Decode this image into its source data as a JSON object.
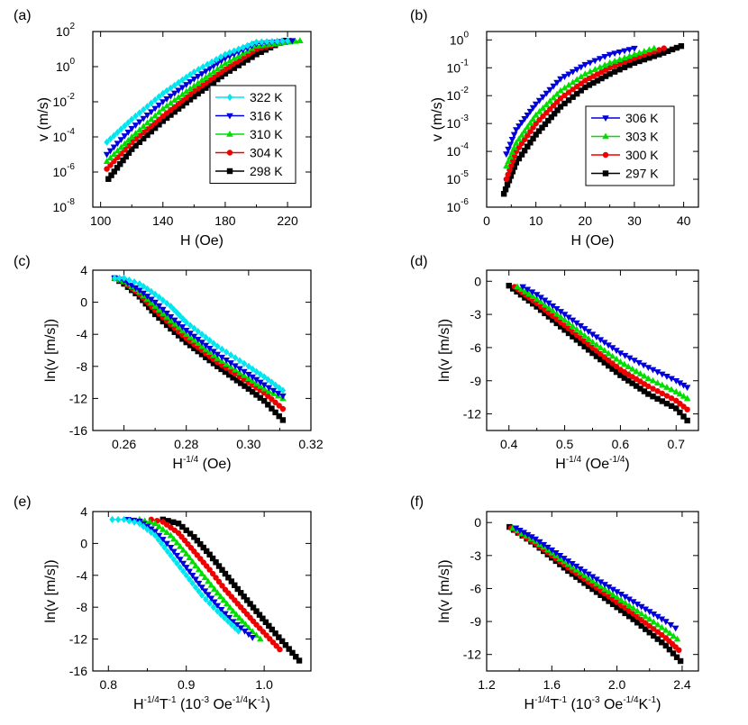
{
  "chart_data": [
    {
      "panel": "(a)",
      "type": "line",
      "xlabel": "H (Oe)",
      "ylabel": "v (m/s)",
      "xlim": [
        95,
        235
      ],
      "ylim": [
        1e-08,
        100
      ],
      "yscale": "log",
      "xticks": [
        100,
        140,
        180,
        220
      ],
      "yticks": [
        1e-08,
        1e-06,
        0.0001,
        0.01,
        1,
        100
      ],
      "ytick_labels": [
        {
          "base": "10",
          "exp": "-8"
        },
        {
          "base": "10",
          "exp": "-6"
        },
        {
          "base": "10",
          "exp": "-4"
        },
        {
          "base": "10",
          "exp": "-2"
        },
        {
          "base": "10",
          "exp": "0"
        },
        {
          "base": "10",
          "exp": "2"
        }
      ],
      "legend_position": "right",
      "series": [
        {
          "name": "322 K",
          "color": "#00e5ee",
          "marker": "diamond",
          "x": [
            104,
            120,
            140,
            160,
            180,
            200,
            220
          ],
          "y": [
            5e-05,
            0.001,
            0.03,
            0.5,
            5,
            25,
            30
          ]
        },
        {
          "name": "316 K",
          "color": "#0000dd",
          "marker": "triangle-down",
          "x": [
            104,
            120,
            140,
            160,
            180,
            200,
            223
          ],
          "y": [
            1e-05,
            0.0003,
            0.01,
            0.2,
            3,
            20,
            30
          ]
        },
        {
          "name": "310 K",
          "color": "#00dd00",
          "marker": "triangle-up",
          "x": [
            104,
            120,
            140,
            160,
            180,
            200,
            228
          ],
          "y": [
            4e-06,
            0.0001,
            0.004,
            0.08,
            1.5,
            15,
            30
          ]
        },
        {
          "name": "304 K",
          "color": "#ee0000",
          "marker": "circle",
          "x": [
            104,
            120,
            140,
            160,
            180,
            200,
            222
          ],
          "y": [
            1.5e-06,
            5e-05,
            0.0015,
            0.04,
            0.7,
            10,
            30
          ]
        },
        {
          "name": "298 K",
          "color": "#000000",
          "marker": "square",
          "x": [
            105,
            120,
            140,
            160,
            180,
            200,
            218
          ],
          "y": [
            4e-07,
            2e-05,
            0.0008,
            0.02,
            0.4,
            5,
            30
          ]
        }
      ]
    },
    {
      "panel": "(b)",
      "type": "line",
      "xlabel": "H (Oe)",
      "ylabel": "v (m/s)",
      "xlim": [
        0,
        43
      ],
      "ylim": [
        1e-06,
        2
      ],
      "yscale": "log",
      "xticks": [
        0,
        10,
        20,
        30,
        40
      ],
      "yticks": [
        1e-06,
        1e-05,
        0.0001,
        0.001,
        0.01,
        0.1,
        1
      ],
      "ytick_labels": [
        {
          "base": "10",
          "exp": "-6"
        },
        {
          "base": "10",
          "exp": "-5"
        },
        {
          "base": "10",
          "exp": "-4"
        },
        {
          "base": "10",
          "exp": "-3"
        },
        {
          "base": "10",
          "exp": "-2"
        },
        {
          "base": "10",
          "exp": "-1"
        },
        {
          "base": "10",
          "exp": "0"
        }
      ],
      "legend_position": "right",
      "series": [
        {
          "name": "306 K",
          "color": "#0000dd",
          "marker": "triangle-down",
          "x": [
            4,
            6,
            10,
            15,
            20,
            25,
            30
          ],
          "y": [
            8e-05,
            0.0006,
            0.005,
            0.04,
            0.13,
            0.3,
            0.5
          ]
        },
        {
          "name": "303 K",
          "color": "#00dd00",
          "marker": "triangle-up",
          "x": [
            4,
            6,
            10,
            15,
            20,
            25,
            30,
            34
          ],
          "y": [
            3e-05,
            0.0002,
            0.002,
            0.015,
            0.06,
            0.15,
            0.3,
            0.5
          ]
        },
        {
          "name": "300 K",
          "color": "#ee0000",
          "marker": "circle",
          "x": [
            4,
            6,
            10,
            15,
            20,
            25,
            30,
            36
          ],
          "y": [
            1e-05,
            0.0001,
            0.001,
            0.008,
            0.035,
            0.1,
            0.22,
            0.5
          ]
        },
        {
          "name": "297 K",
          "color": "#000000",
          "marker": "square",
          "x": [
            3.5,
            6,
            10,
            15,
            20,
            25,
            30,
            35,
            39.5
          ],
          "y": [
            3e-06,
            4e-05,
            0.0004,
            0.004,
            0.02,
            0.06,
            0.15,
            0.3,
            0.6
          ]
        }
      ]
    },
    {
      "panel": "(c)",
      "type": "line",
      "xlabel": {
        "base": "H",
        "sup": "-1/4",
        "rest": " (Oe)"
      },
      "ylabel": "ln(v [m/s])",
      "xlim": [
        0.25,
        0.32
      ],
      "ylim": [
        -16,
        4
      ],
      "xticks": [
        0.26,
        0.28,
        0.3,
        0.32
      ],
      "xtick_labels": [
        "0.26",
        "0.28",
        "0.30",
        "0.32"
      ],
      "yticks": [
        -16,
        -12,
        -8,
        -4,
        0,
        4
      ],
      "series": [
        {
          "name": "322 K",
          "color": "#00e5ee",
          "marker": "diamond",
          "x": [
            0.257,
            0.26,
            0.265,
            0.27,
            0.275,
            0.28,
            0.29,
            0.3,
            0.305,
            0.311
          ],
          "y": [
            3,
            3,
            2.3,
            1,
            -0.5,
            -2.5,
            -5.5,
            -8,
            -9.3,
            -11
          ]
        },
        {
          "name": "316 K",
          "color": "#0000dd",
          "marker": "triangle-down",
          "x": [
            0.257,
            0.26,
            0.265,
            0.27,
            0.275,
            0.28,
            0.29,
            0.3,
            0.305,
            0.311
          ],
          "y": [
            3,
            2.7,
            1.5,
            0,
            -1.8,
            -3.5,
            -6.5,
            -9,
            -10.3,
            -11.7
          ]
        },
        {
          "name": "310 K",
          "color": "#00dd00",
          "marker": "triangle-up",
          "x": [
            0.257,
            0.26,
            0.265,
            0.27,
            0.275,
            0.28,
            0.29,
            0.3,
            0.305,
            0.311
          ],
          "y": [
            3,
            2.6,
            1.3,
            -0.5,
            -2.3,
            -4,
            -7,
            -9.5,
            -10.8,
            -12
          ]
        },
        {
          "name": "304 K",
          "color": "#ee0000",
          "marker": "circle",
          "x": [
            0.257,
            0.26,
            0.265,
            0.27,
            0.275,
            0.28,
            0.29,
            0.3,
            0.305,
            0.311
          ],
          "y": [
            3,
            2.5,
            1,
            -1,
            -2.8,
            -4.5,
            -7.5,
            -10,
            -11.3,
            -13.3
          ]
        },
        {
          "name": "298 K",
          "color": "#000000",
          "marker": "square",
          "x": [
            0.257,
            0.26,
            0.265,
            0.27,
            0.275,
            0.28,
            0.29,
            0.3,
            0.305,
            0.311
          ],
          "y": [
            3,
            2.3,
            0.7,
            -1.5,
            -3.3,
            -5,
            -8,
            -10.8,
            -12.3,
            -14.7
          ]
        }
      ]
    },
    {
      "panel": "(d)",
      "type": "line",
      "xlabel": {
        "base": "H",
        "sup": "-1/4",
        "rest": " (Oe",
        "sup2": "-1/4",
        "rest2": ")"
      },
      "ylabel": "ln(v [m/s])",
      "xlim": [
        0.36,
        0.74
      ],
      "ylim": [
        -13.5,
        1
      ],
      "xticks": [
        0.4,
        0.5,
        0.6,
        0.7
      ],
      "xtick_labels": [
        "0.4",
        "0.5",
        "0.6",
        "0.7"
      ],
      "yticks": [
        -12,
        -9,
        -6,
        -3,
        0
      ],
      "series": [
        {
          "name": "306 K",
          "color": "#0000dd",
          "marker": "triangle-down",
          "x": [
            0.425,
            0.45,
            0.5,
            0.55,
            0.6,
            0.65,
            0.7,
            0.72
          ],
          "y": [
            -0.5,
            -1.2,
            -3,
            -4.8,
            -6.5,
            -7.8,
            -9,
            -9.6
          ]
        },
        {
          "name": "303 K",
          "color": "#00dd00",
          "marker": "triangle-up",
          "x": [
            0.415,
            0.45,
            0.5,
            0.55,
            0.6,
            0.65,
            0.7,
            0.72
          ],
          "y": [
            -0.5,
            -1.6,
            -3.5,
            -5.5,
            -7.3,
            -8.8,
            -10,
            -10.6
          ]
        },
        {
          "name": "300 K",
          "color": "#ee0000",
          "marker": "circle",
          "x": [
            0.41,
            0.45,
            0.5,
            0.55,
            0.6,
            0.65,
            0.7,
            0.72
          ],
          "y": [
            -0.5,
            -2,
            -4,
            -6,
            -8,
            -9.5,
            -10.8,
            -11.6
          ]
        },
        {
          "name": "297 K",
          "color": "#000000",
          "marker": "square",
          "x": [
            0.4,
            0.45,
            0.5,
            0.55,
            0.6,
            0.65,
            0.7,
            0.72
          ],
          "y": [
            -0.4,
            -2.3,
            -4.4,
            -6.5,
            -8.5,
            -10.2,
            -11.5,
            -12.6
          ]
        }
      ]
    },
    {
      "panel": "(e)",
      "type": "line",
      "xlabel": {
        "base": "H",
        "sup": "-1/4",
        "rest": "T",
        "sup2": "-1",
        "rest2": " (10",
        "sup3": "-3",
        "rest3": " Oe",
        "sup4": "-1/4",
        "rest4": "K",
        "sup5": "-1",
        "rest5": ")"
      },
      "ylabel": "ln(v [m/s])",
      "xlim": [
        0.78,
        1.06
      ],
      "ylim": [
        -16,
        4
      ],
      "xticks": [
        0.8,
        0.9,
        1.0
      ],
      "xtick_labels": [
        "0.8",
        "0.9",
        "1.0"
      ],
      "yticks": [
        -16,
        -12,
        -8,
        -4,
        0,
        4
      ],
      "series": [
        {
          "name": "322 K",
          "color": "#00e5ee",
          "marker": "diamond",
          "x": [
            0.805,
            0.82,
            0.84,
            0.86,
            0.88,
            0.9,
            0.92,
            0.94,
            0.967
          ],
          "y": [
            3,
            3,
            2.5,
            1,
            -1.5,
            -4,
            -6.5,
            -8.5,
            -11
          ]
        },
        {
          "name": "316 K",
          "color": "#0000dd",
          "marker": "triangle-down",
          "x": [
            0.825,
            0.84,
            0.86,
            0.88,
            0.9,
            0.92,
            0.94,
            0.96,
            0.985
          ],
          "y": [
            3,
            2.8,
            1.5,
            -0.5,
            -3,
            -5.5,
            -7.8,
            -9.8,
            -11.8
          ]
        },
        {
          "name": "310 K",
          "color": "#00dd00",
          "marker": "triangle-up",
          "x": [
            0.84,
            0.86,
            0.88,
            0.9,
            0.92,
            0.94,
            0.96,
            0.98,
            0.995
          ],
          "y": [
            3,
            2.5,
            1,
            -1.3,
            -3.8,
            -6.2,
            -8.5,
            -10.6,
            -12
          ]
        },
        {
          "name": "304 K",
          "color": "#ee0000",
          "marker": "circle",
          "x": [
            0.855,
            0.87,
            0.89,
            0.91,
            0.93,
            0.95,
            0.97,
            0.99,
            1.02
          ],
          "y": [
            3,
            2.7,
            1.3,
            -1,
            -3.3,
            -5.8,
            -8,
            -10.2,
            -13.3
          ]
        },
        {
          "name": "298 K",
          "color": "#000000",
          "marker": "square",
          "x": [
            0.87,
            0.89,
            0.91,
            0.93,
            0.95,
            0.97,
            0.99,
            1.01,
            1.045
          ],
          "y": [
            3,
            2.5,
            0.8,
            -1.4,
            -3.8,
            -6.2,
            -8.5,
            -10.8,
            -14.7
          ]
        }
      ]
    },
    {
      "panel": "(f)",
      "type": "line",
      "xlabel": {
        "base": "H",
        "sup": "-1/4",
        "rest": "T",
        "sup2": "-1",
        "rest2": " (10",
        "sup3": "-3",
        "rest3": " Oe",
        "sup4": "-1/4",
        "rest4": "K",
        "sup5": "-1",
        "rest5": ")"
      },
      "ylabel": "ln(v [m/s])",
      "xlim": [
        1.2,
        2.5
      ],
      "ylim": [
        -13.5,
        1
      ],
      "xticks": [
        1.2,
        1.6,
        2.0,
        2.4
      ],
      "xtick_labels": [
        "1.2",
        "1.6",
        "2.0",
        "2.4"
      ],
      "yticks": [
        -12,
        -9,
        -6,
        -3,
        0
      ],
      "series": [
        {
          "name": "306 K",
          "color": "#0000dd",
          "marker": "triangle-down",
          "x": [
            1.38,
            1.5,
            1.7,
            1.9,
            2.1,
            2.3,
            2.36
          ],
          "y": [
            -0.5,
            -1.5,
            -3.5,
            -5.4,
            -7.2,
            -9,
            -9.6
          ]
        },
        {
          "name": "303 K",
          "color": "#00dd00",
          "marker": "triangle-up",
          "x": [
            1.36,
            1.5,
            1.7,
            1.9,
            2.1,
            2.3,
            2.37
          ],
          "y": [
            -0.5,
            -1.7,
            -3.8,
            -5.8,
            -7.8,
            -9.8,
            -10.6
          ]
        },
        {
          "name": "300 K",
          "color": "#ee0000",
          "marker": "circle",
          "x": [
            1.35,
            1.5,
            1.7,
            1.9,
            2.1,
            2.3,
            2.38
          ],
          "y": [
            -0.5,
            -1.9,
            -4.1,
            -6.2,
            -8.3,
            -10.5,
            -11.6
          ]
        },
        {
          "name": "297 K",
          "color": "#000000",
          "marker": "square",
          "x": [
            1.34,
            1.5,
            1.7,
            1.9,
            2.1,
            2.3,
            2.39
          ],
          "y": [
            -0.4,
            -2,
            -4.4,
            -6.6,
            -8.8,
            -11.2,
            -12.6
          ]
        }
      ]
    }
  ]
}
